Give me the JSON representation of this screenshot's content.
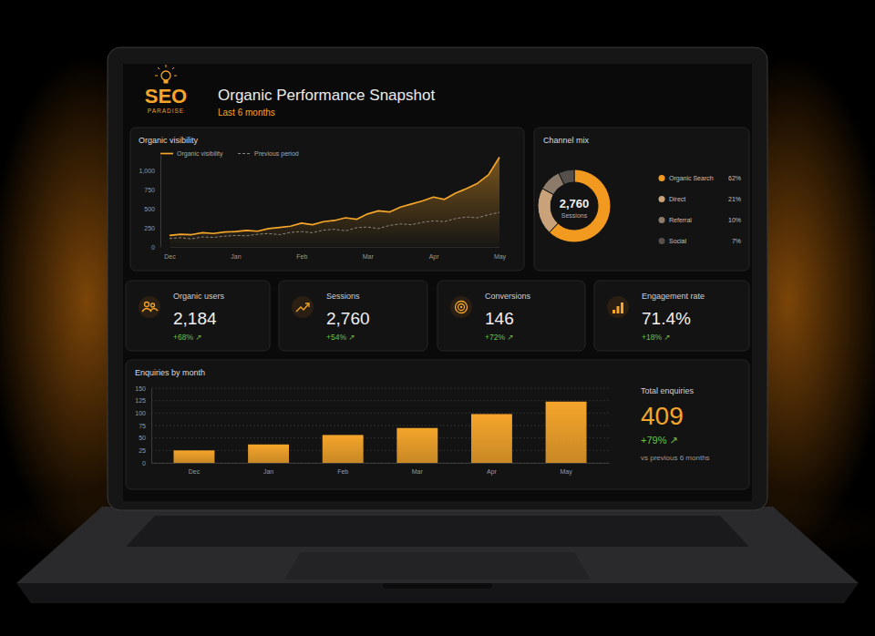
{
  "header": {
    "logo_top": "SEO",
    "logo_bottom": "PARADISE",
    "title": "Organic Performance Snapshot",
    "subtitle": "Last 6 months"
  },
  "chart_data": [
    {
      "type": "line",
      "title": "Organic visibility",
      "categories": [
        "Dec",
        null,
        null,
        null,
        null,
        null,
        "Jan",
        null,
        null,
        null,
        null,
        null,
        "Feb",
        null,
        null,
        null,
        null,
        null,
        "Mar",
        null,
        null,
        null,
        null,
        null,
        "Apr",
        null,
        null,
        null,
        null,
        null,
        "May"
      ],
      "series": [
        {
          "name": "Organic visibility",
          "color": "#f5a52a",
          "type": "area",
          "line_style": "solid",
          "values": [
            150,
            165,
            160,
            185,
            175,
            195,
            200,
            215,
            205,
            240,
            255,
            270,
            310,
            290,
            330,
            345,
            380,
            360,
            430,
            470,
            455,
            520,
            560,
            600,
            650,
            620,
            700,
            760,
            830,
            940,
            1170
          ]
        },
        {
          "name": "Previous period",
          "color": "#8a8580",
          "type": "line",
          "line_style": "dashed",
          "values": [
            110,
            120,
            105,
            130,
            125,
            140,
            150,
            145,
            165,
            175,
            160,
            190,
            200,
            185,
            220,
            230,
            210,
            250,
            260,
            240,
            280,
            300,
            290,
            320,
            340,
            330,
            370,
            390,
            380,
            420,
            450
          ]
        }
      ],
      "ylim": [
        0,
        1200
      ],
      "yticks": [
        0,
        250,
        500,
        750,
        {
          "value": 1000,
          "label": "1,000"
        }
      ],
      "grid": false,
      "legend": "top-left"
    },
    {
      "type": "pie",
      "title": "Channel mix",
      "center_label": "2,760",
      "center_text": "Sessions",
      "categories": [
        "Organic Search",
        "Direct",
        "Referral",
        "Social"
      ],
      "values": [
        62,
        21,
        10,
        7
      ],
      "value_labels": [
        "62%",
        "21%",
        "10%",
        "7%"
      ],
      "colors": [
        "#f29a1f",
        "#c9a27a",
        "#8c7b6b",
        "#55504b"
      ],
      "legend": "right"
    },
    {
      "type": "bar",
      "title": "Enquiries by month",
      "categories": [
        "Dec",
        "Jan",
        "Feb",
        "Mar",
        "Apr",
        "May"
      ],
      "values": [
        25,
        37,
        56,
        70,
        98,
        123
      ],
      "color": "#f5a52a",
      "ylim": [
        0,
        150
      ],
      "yticks": [
        0,
        25,
        50,
        75,
        100,
        125,
        150
      ],
      "grid": true
    }
  ],
  "kpis": [
    {
      "label": "Organic users",
      "value": "2,184",
      "change": "+68% ↗"
    },
    {
      "label": "Sessions",
      "value": "2,760",
      "change": "+54% ↗"
    },
    {
      "label": "Conversions",
      "value": "146",
      "change": "+72% ↗"
    },
    {
      "label": "Engagement rate",
      "value": "71.4%",
      "change": "+18% ↗"
    }
  ],
  "total": {
    "label": "Total enquiries",
    "value": "409",
    "change": "+79% ↗",
    "note": "vs previous 6 months"
  }
}
